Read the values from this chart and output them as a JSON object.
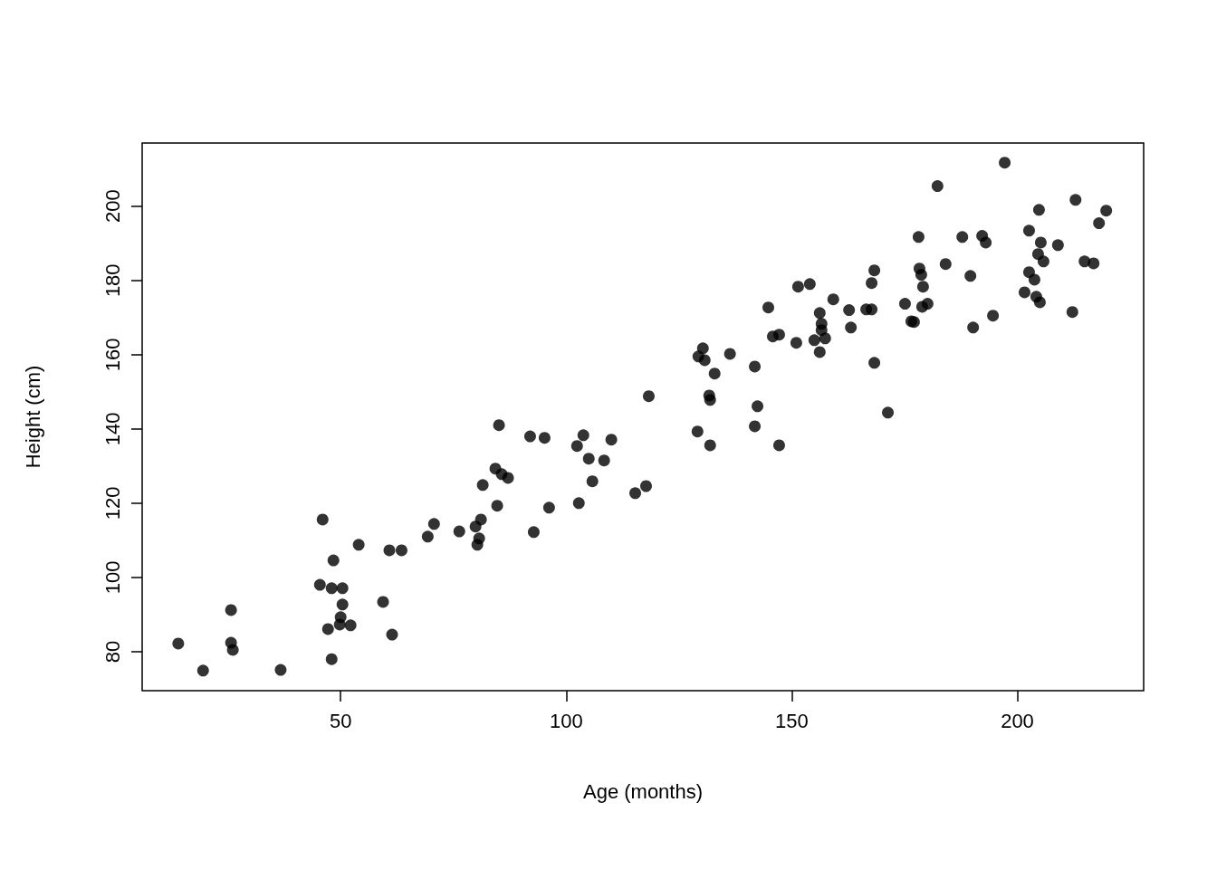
{
  "chart_data": {
    "type": "scatter",
    "xlabel": "Age (months)",
    "ylabel": "Height (cm)",
    "color": "#000000",
    "marker": "circle",
    "xlim": [
      6,
      228
    ],
    "ylim": [
      69.5,
      217
    ],
    "xticks": [
      50,
      100,
      150,
      200
    ],
    "yticks": [
      80,
      100,
      120,
      140,
      160,
      180,
      200
    ],
    "x": [
      14,
      19.5,
      25.7,
      25.7,
      26.1,
      36.7,
      45.4,
      46,
      47.2,
      48,
      48,
      48.4,
      49.8,
      50,
      50.4,
      50.4,
      52.2,
      54,
      59.4,
      60.8,
      61.4,
      63.5,
      69.3,
      70.7,
      76.3,
      79.9,
      80.3,
      80.7,
      81.1,
      81.5,
      84.3,
      84.7,
      85.1,
      85.7,
      87.1,
      92,
      92.8,
      95.2,
      96.2,
      102.4,
      102.8,
      103.8,
      105,
      105.8,
      108.4,
      110,
      115.3,
      117.7,
      118.3,
      129.1,
      129.3,
      130.3,
      130.7,
      131.7,
      131.9,
      131.9,
      132.9,
      136.3,
      141.8,
      141.8,
      142.4,
      144.8,
      145.8,
      147.2,
      147.2,
      151,
      151.4,
      154,
      155,
      156.2,
      156.6,
      156.6,
      156.2,
      157.4,
      159.2,
      162.7,
      163.1,
      166.5,
      167.7,
      167.7,
      168.3,
      168.3,
      171.3,
      175.1,
      176.5,
      177.1,
      178.1,
      178.3,
      178.7,
      179.1,
      178.9,
      180.1,
      182.3,
      184.1,
      187.8,
      189.6,
      190.2,
      192.2,
      193,
      194.6,
      197.2,
      201.6,
      202.6,
      202.6,
      203.8,
      204.2,
      204.6,
      204.8,
      205,
      205.2,
      205.8,
      209,
      212.2,
      212.9,
      214.9,
      216.9,
      218.1,
      219.7
    ],
    "values": [
      82.2,
      74.9,
      91.2,
      82.4,
      80.5,
      75.1,
      98,
      115.6,
      86.1,
      97.1,
      78,
      104.6,
      87.3,
      89.3,
      97.1,
      92.7,
      87.1,
      108.8,
      93.4,
      107.3,
      84.6,
      107.3,
      111,
      114.4,
      112.4,
      113.7,
      108.8,
      110.5,
      115.6,
      124.9,
      129.3,
      119.3,
      141,
      127.8,
      126.8,
      138,
      112.2,
      137.6,
      118.8,
      135.4,
      120,
      138.3,
      132,
      125.9,
      131.5,
      137.1,
      122.7,
      124.6,
      148.8,
      139.3,
      159.5,
      161.7,
      158.5,
      149,
      147.8,
      135.6,
      154.9,
      160.2,
      156.8,
      140.7,
      146.1,
      172.7,
      164.9,
      165.4,
      135.6,
      163.2,
      178.3,
      179,
      163.9,
      171.2,
      168.3,
      166.6,
      160.7,
      164.4,
      174.9,
      172,
      167.3,
      172.2,
      172.2,
      179.3,
      182.7,
      157.8,
      144.4,
      173.7,
      169,
      168.8,
      191.7,
      183.2,
      181.5,
      178.3,
      172.9,
      173.7,
      205.4,
      184.4,
      191.7,
      181.2,
      167.3,
      192,
      190.2,
      170.5,
      211.7,
      176.8,
      193.4,
      182.2,
      180.2,
      175.6,
      187.1,
      199,
      174.1,
      190.2,
      185.1,
      189.5,
      171.5,
      201.7,
      185.1,
      184.6,
      195.4,
      198.8
    ]
  }
}
